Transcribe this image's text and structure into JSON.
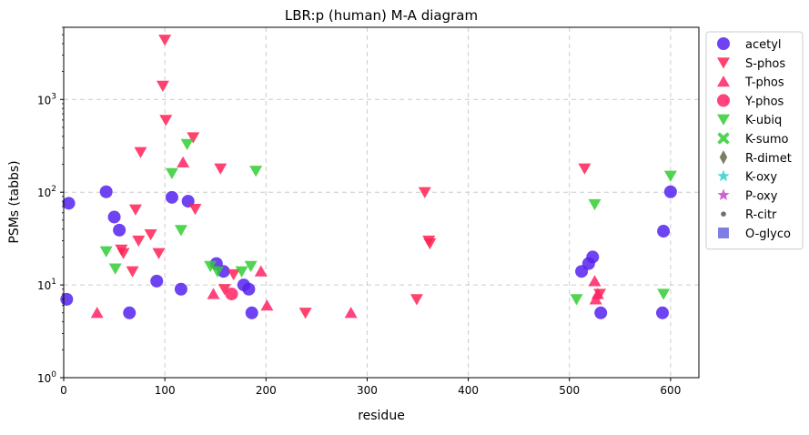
{
  "chart_data": {
    "type": "scatter",
    "title": "LBR:p (human) M-A diagram",
    "xlabel": "residue",
    "ylabel": "PSMs (tabbs)",
    "xlim": [
      0,
      628
    ],
    "ylim": [
      1,
      6000
    ],
    "yscale": "log",
    "grid": true,
    "legend_position": "outside-right",
    "x_ticks": [
      {
        "value": 0,
        "label": "0"
      },
      {
        "value": 100,
        "label": "100"
      },
      {
        "value": 200,
        "label": "200"
      },
      {
        "value": 300,
        "label": "300"
      },
      {
        "value": 400,
        "label": "400"
      },
      {
        "value": 500,
        "label": "500"
      },
      {
        "value": 600,
        "label": "600"
      }
    ],
    "y_ticks": [
      {
        "value": 1,
        "base": "10",
        "exp": "0"
      },
      {
        "value": 10,
        "base": "10",
        "exp": "1"
      },
      {
        "value": 100,
        "base": "10",
        "exp": "2"
      },
      {
        "value": 1000,
        "base": "10",
        "exp": "3"
      }
    ],
    "series": [
      {
        "name": "acetyl",
        "marker": "circle",
        "color": "#5522ee",
        "points": [
          [
            3,
            7
          ],
          [
            5,
            76
          ],
          [
            42,
            101
          ],
          [
            50,
            54
          ],
          [
            55,
            39
          ],
          [
            65,
            5
          ],
          [
            92,
            11
          ],
          [
            107,
            88
          ],
          [
            116,
            9
          ],
          [
            123,
            80
          ],
          [
            151,
            17
          ],
          [
            158,
            14
          ],
          [
            178,
            10
          ],
          [
            183,
            9
          ],
          [
            186,
            5
          ],
          [
            512,
            14
          ],
          [
            519,
            17
          ],
          [
            523,
            20
          ],
          [
            531,
            5
          ],
          [
            593,
            38
          ],
          [
            592,
            5
          ],
          [
            600,
            101
          ]
        ]
      },
      {
        "name": "S-phos",
        "marker": "triangle-down",
        "color": "#ff2255",
        "points": [
          [
            100,
            4400
          ],
          [
            98,
            1400
          ],
          [
            101,
            600
          ],
          [
            76,
            270
          ],
          [
            128,
            390
          ],
          [
            155,
            180
          ],
          [
            86,
            35
          ],
          [
            71,
            65
          ],
          [
            94,
            22
          ],
          [
            74,
            30
          ],
          [
            59,
            22
          ],
          [
            57,
            24
          ],
          [
            68,
            14
          ],
          [
            130,
            66
          ],
          [
            159,
            9
          ],
          [
            168,
            13
          ],
          [
            239,
            5
          ],
          [
            357,
            100
          ],
          [
            361,
            30
          ],
          [
            362,
            28
          ],
          [
            349,
            7
          ],
          [
            515,
            180
          ],
          [
            530,
            8
          ]
        ]
      },
      {
        "name": "T-phos",
        "marker": "triangle-up",
        "color": "#ff2266",
        "points": [
          [
            118,
            210
          ],
          [
            33,
            5
          ],
          [
            148,
            8
          ],
          [
            195,
            14
          ],
          [
            201,
            6
          ],
          [
            284,
            5
          ],
          [
            525,
            11
          ],
          [
            528,
            8
          ],
          [
            526,
            7
          ]
        ]
      },
      {
        "name": "Y-phos",
        "marker": "circle",
        "color": "#ff2266",
        "points": [
          [
            166,
            8
          ]
        ]
      },
      {
        "name": "K-ubiq",
        "marker": "triangle-down",
        "color": "#33cc33",
        "points": [
          [
            122,
            330
          ],
          [
            107,
            160
          ],
          [
            190,
            170
          ],
          [
            116,
            39
          ],
          [
            42,
            23
          ],
          [
            51,
            15
          ],
          [
            145,
            16
          ],
          [
            152,
            14
          ],
          [
            176,
            14
          ],
          [
            185,
            16
          ],
          [
            507,
            7
          ],
          [
            525,
            74
          ],
          [
            593,
            8
          ],
          [
            600,
            150
          ]
        ]
      },
      {
        "name": "K-sumo",
        "marker": "x",
        "color": "#33cc33",
        "points": []
      },
      {
        "name": "R-dimet",
        "marker": "diamond",
        "color": "#666644",
        "points": []
      },
      {
        "name": "K-oxy",
        "marker": "star",
        "color": "#33cccc",
        "points": []
      },
      {
        "name": "P-oxy",
        "marker": "star",
        "color": "#cc44cc",
        "points": []
      },
      {
        "name": "R-citr",
        "marker": "dot",
        "color": "#555555",
        "points": []
      },
      {
        "name": "O-glyco",
        "marker": "square",
        "color": "#6666dd",
        "points": []
      }
    ]
  }
}
